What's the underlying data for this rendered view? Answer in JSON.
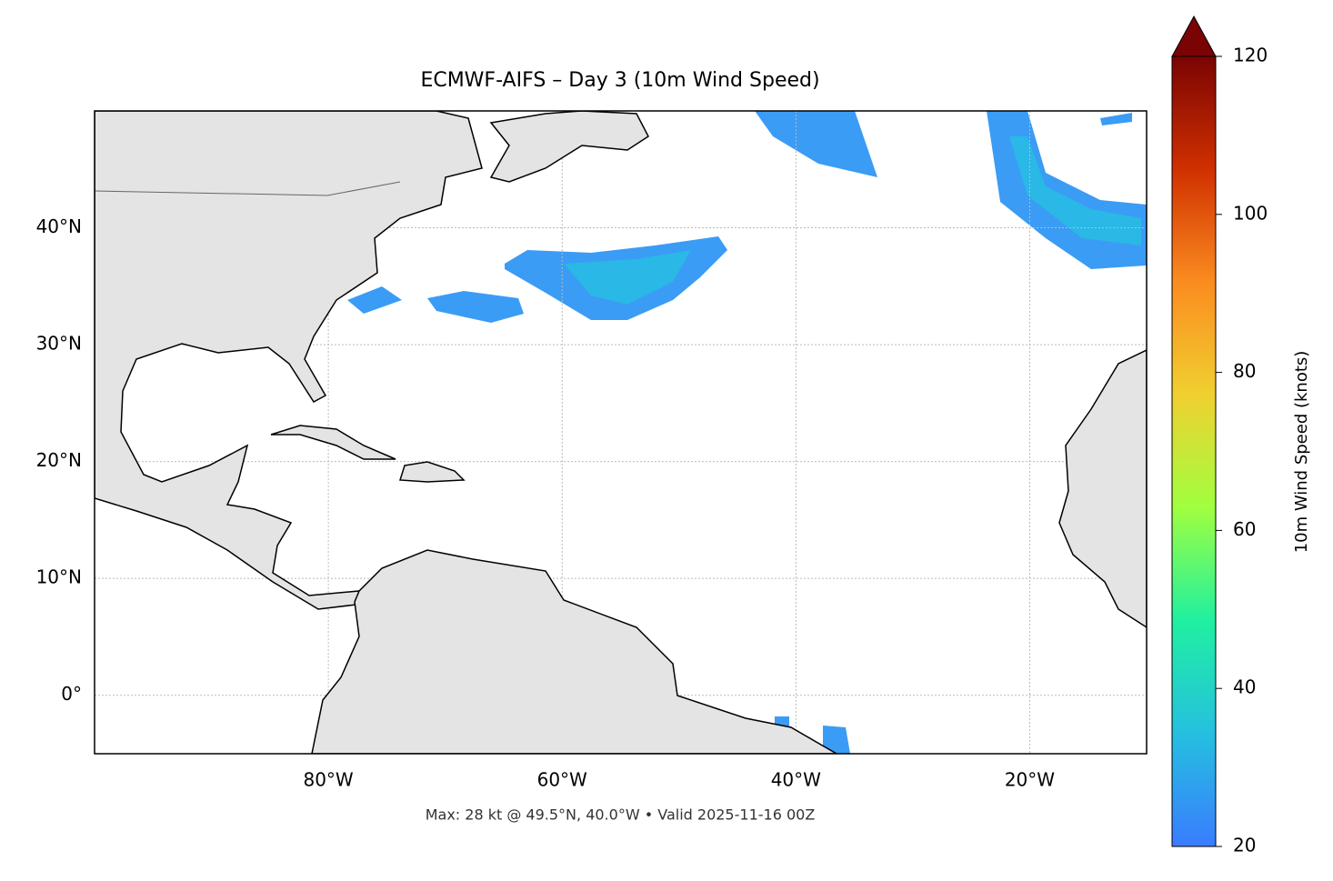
{
  "chart_data": {
    "type": "map",
    "title": "ECMWF-AIFS – Day 3 (10m Wind Speed)",
    "footer": "Max: 28 kt @ 49.5°N, 40.0°W • Valid 2025-11-16 00Z",
    "xlim": [
      -100,
      -10
    ],
    "ylim": [
      -5,
      50
    ],
    "xticks": [
      {
        "value": -80,
        "label": "80°W"
      },
      {
        "value": -60,
        "label": "60°W"
      },
      {
        "value": -40,
        "label": "40°W"
      },
      {
        "value": -20,
        "label": "20°W"
      }
    ],
    "yticks": [
      {
        "value": 0,
        "label": "0°"
      },
      {
        "value": 10,
        "label": "10°N"
      },
      {
        "value": 20,
        "label": "20°N"
      },
      {
        "value": 30,
        "label": "30°N"
      },
      {
        "value": 40,
        "label": "40°N"
      }
    ],
    "grid": true,
    "colorbar": {
      "label": "10m Wind Speed (knots)",
      "lim": [
        20,
        120
      ],
      "ticks": [
        20,
        40,
        60,
        80,
        100,
        120
      ],
      "colors": [
        "#3a7cff",
        "#25c0e0",
        "#20f0a0",
        "#a0ff40",
        "#f0d030",
        "#fb8c20",
        "#d03000",
        "#7a0403"
      ]
    }
  }
}
